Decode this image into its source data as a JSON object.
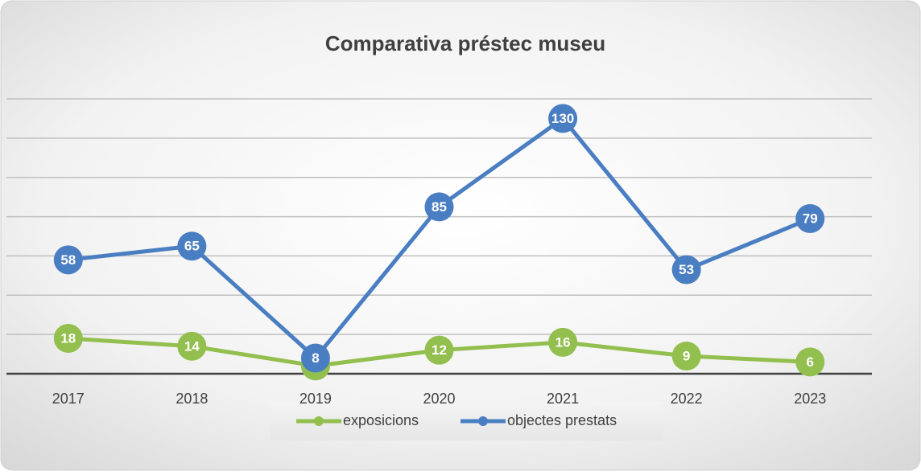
{
  "chart_data": {
    "type": "line",
    "title": "Comparativa préstec museu",
    "categories": [
      "2017",
      "2018",
      "2019",
      "2020",
      "2021",
      "2022",
      "2023"
    ],
    "series": [
      {
        "name": "exposicions",
        "color": "#92bf4e",
        "values": [
          18,
          14,
          4,
          12,
          16,
          9,
          6
        ]
      },
      {
        "name": "objectes prestats",
        "color": "#4a7ec2",
        "values": [
          58,
          65,
          8,
          85,
          130,
          53,
          79
        ]
      }
    ],
    "ylim": [
      0,
      140
    ],
    "yticks": [
      0,
      20,
      40,
      60,
      80,
      100,
      120,
      140
    ],
    "grid": true
  }
}
